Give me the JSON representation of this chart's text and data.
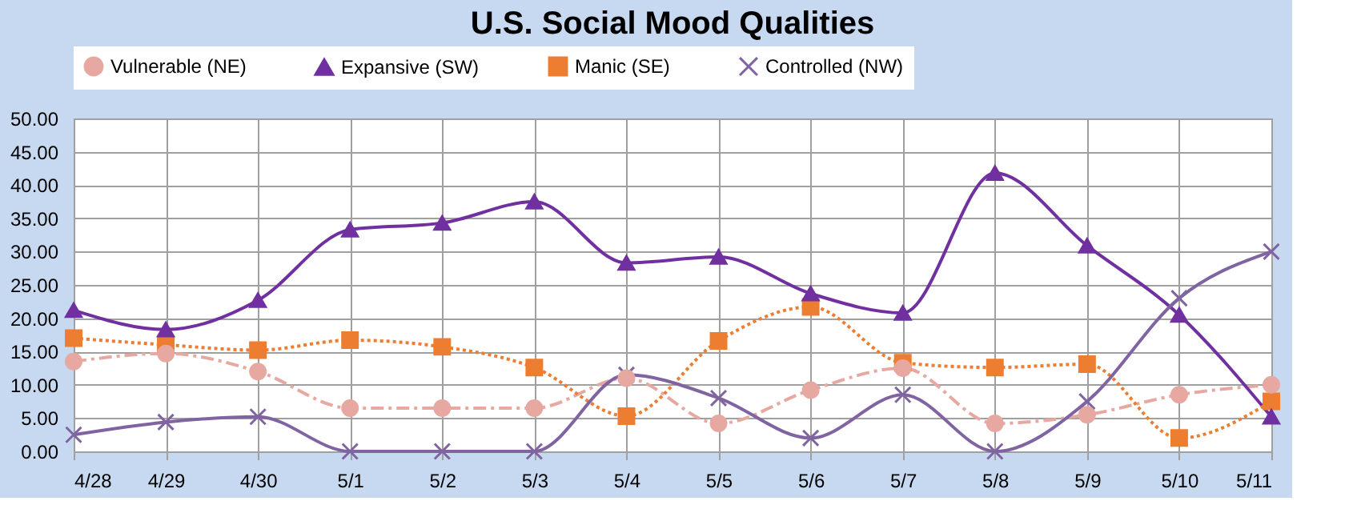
{
  "chart_data": {
    "type": "line",
    "title": "U.S.  Social Mood Qualities",
    "categories": [
      "4/28",
      "4/29",
      "4/30",
      "5/1",
      "5/2",
      "5/3",
      "5/4",
      "5/5",
      "5/6",
      "5/7",
      "5/8",
      "5/9",
      "5/10",
      "5/11"
    ],
    "series": [
      {
        "name": "Vulnerable (NE)",
        "color": "#e6a8a0",
        "marker": "circle",
        "line_style": "dashed",
        "values": [
          13.5,
          14.7,
          12.0,
          6.5,
          6.5,
          6.5,
          11.0,
          4.2,
          9.2,
          12.5,
          4.2,
          5.5,
          8.5,
          10.0
        ]
      },
      {
        "name": "Expansive (SW)",
        "color": "#7030a0",
        "marker": "triangle",
        "line_style": "solid",
        "values": [
          21.2,
          18.3,
          22.7,
          33.3,
          34.3,
          37.5,
          28.3,
          29.2,
          23.7,
          20.8,
          41.8,
          30.9,
          20.5,
          5.2
        ]
      },
      {
        "name": "Manic (SE)",
        "color": "#ed7d31",
        "marker": "square",
        "line_style": "dotted",
        "values": [
          17.0,
          16.0,
          15.2,
          16.7,
          15.7,
          12.6,
          5.3,
          16.6,
          21.7,
          13.3,
          12.6,
          13.1,
          2.0,
          7.5
        ]
      },
      {
        "name": "Controlled (NW)",
        "color": "#8064a2",
        "marker": "cross",
        "line_style": "solid",
        "values": [
          2.5,
          4.4,
          5.2,
          0,
          0,
          0,
          11.5,
          8.0,
          2.0,
          8.5,
          0,
          7.5,
          23.0,
          30.0
        ]
      }
    ],
    "ylim": [
      0,
      50
    ],
    "yticks": [
      {
        "value": 0,
        "label": "0.00"
      },
      {
        "value": 5,
        "label": "5.00"
      },
      {
        "value": 10,
        "label": "10.00"
      },
      {
        "value": 15,
        "label": "15.00"
      },
      {
        "value": 20,
        "label": "20.00"
      },
      {
        "value": 25,
        "label": "25.00"
      },
      {
        "value": 30,
        "label": "30.00"
      },
      {
        "value": 35,
        "label": "35.00"
      },
      {
        "value": 40,
        "label": "40.00"
      },
      {
        "value": 45,
        "label": "45.00"
      },
      {
        "value": 50,
        "label": "50.00"
      }
    ],
    "grid": true,
    "legend": "top"
  }
}
